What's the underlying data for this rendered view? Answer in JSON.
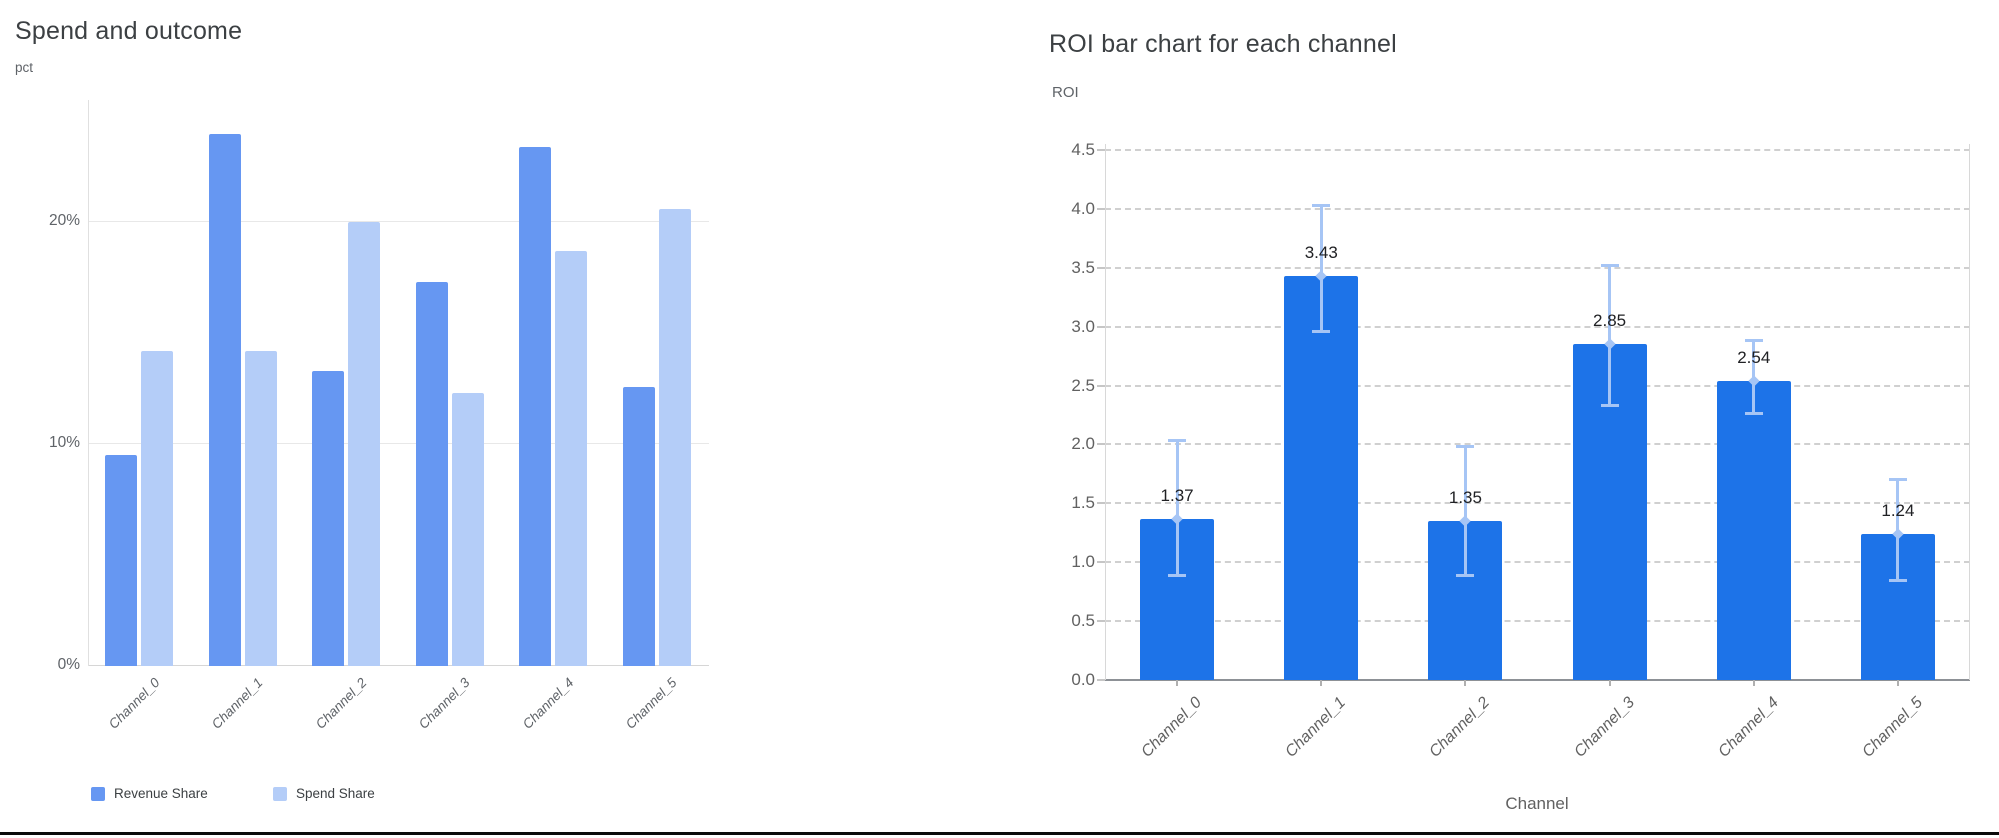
{
  "page": {
    "background": "#ffffff",
    "bottom_rule_color": "#0b0b0b"
  },
  "chart_data": [
    {
      "type": "bar",
      "title": "Spend and outcome",
      "ylabel": "pct",
      "xlabel": "",
      "categories": [
        "Channel_0",
        "Channel_1",
        "Channel_2",
        "Channel_3",
        "Channel_4",
        "Channel_5"
      ],
      "series": [
        {
          "name": "Revenue Share",
          "color": "#6697f2",
          "values": [
            9.5,
            24.0,
            13.3,
            17.3,
            23.4,
            12.6
          ]
        },
        {
          "name": "Spend Share",
          "color": "#b4cdf8",
          "values": [
            14.2,
            14.2,
            20.0,
            12.3,
            18.7,
            20.6
          ]
        }
      ],
      "y_ticks": [
        0,
        10,
        20
      ],
      "y_tick_labels": [
        "0%",
        "10%",
        "20%"
      ],
      "ylim": [
        0,
        25.5
      ],
      "grid": "solid",
      "legend_position": "bottom",
      "legend_entries": [
        "Revenue Share",
        "Spend Share"
      ]
    },
    {
      "type": "bar",
      "title": "ROI bar chart for each channel",
      "ylabel": "ROI",
      "xlabel": "Channel",
      "categories": [
        "Channel_0",
        "Channel_1",
        "Channel_2",
        "Channel_3",
        "Channel_4",
        "Channel_5"
      ],
      "series": [
        {
          "name": "ROI",
          "color": "#1d73e8",
          "values": [
            1.37,
            3.43,
            1.35,
            2.85,
            2.54,
            1.24
          ]
        }
      ],
      "data_labels": [
        "1.37",
        "3.43",
        "1.35",
        "2.85",
        "2.54",
        "1.24"
      ],
      "error_bars": {
        "color": "#a6c5f5",
        "low": [
          0.88,
          2.95,
          0.88,
          2.33,
          2.26,
          0.84
        ],
        "high": [
          2.04,
          4.03,
          1.99,
          3.52,
          2.89,
          1.71
        ]
      },
      "y_ticks": [
        0.0,
        0.5,
        1.0,
        1.5,
        2.0,
        2.5,
        3.0,
        3.5,
        4.0,
        4.5
      ],
      "y_tick_labels": [
        "0.0",
        "0.5",
        "1.0",
        "1.5",
        "2.0",
        "2.5",
        "3.0",
        "3.5",
        "4.0",
        "4.5"
      ],
      "ylim": [
        0,
        4.58
      ],
      "grid": "dashed",
      "legend_position": "none"
    }
  ]
}
